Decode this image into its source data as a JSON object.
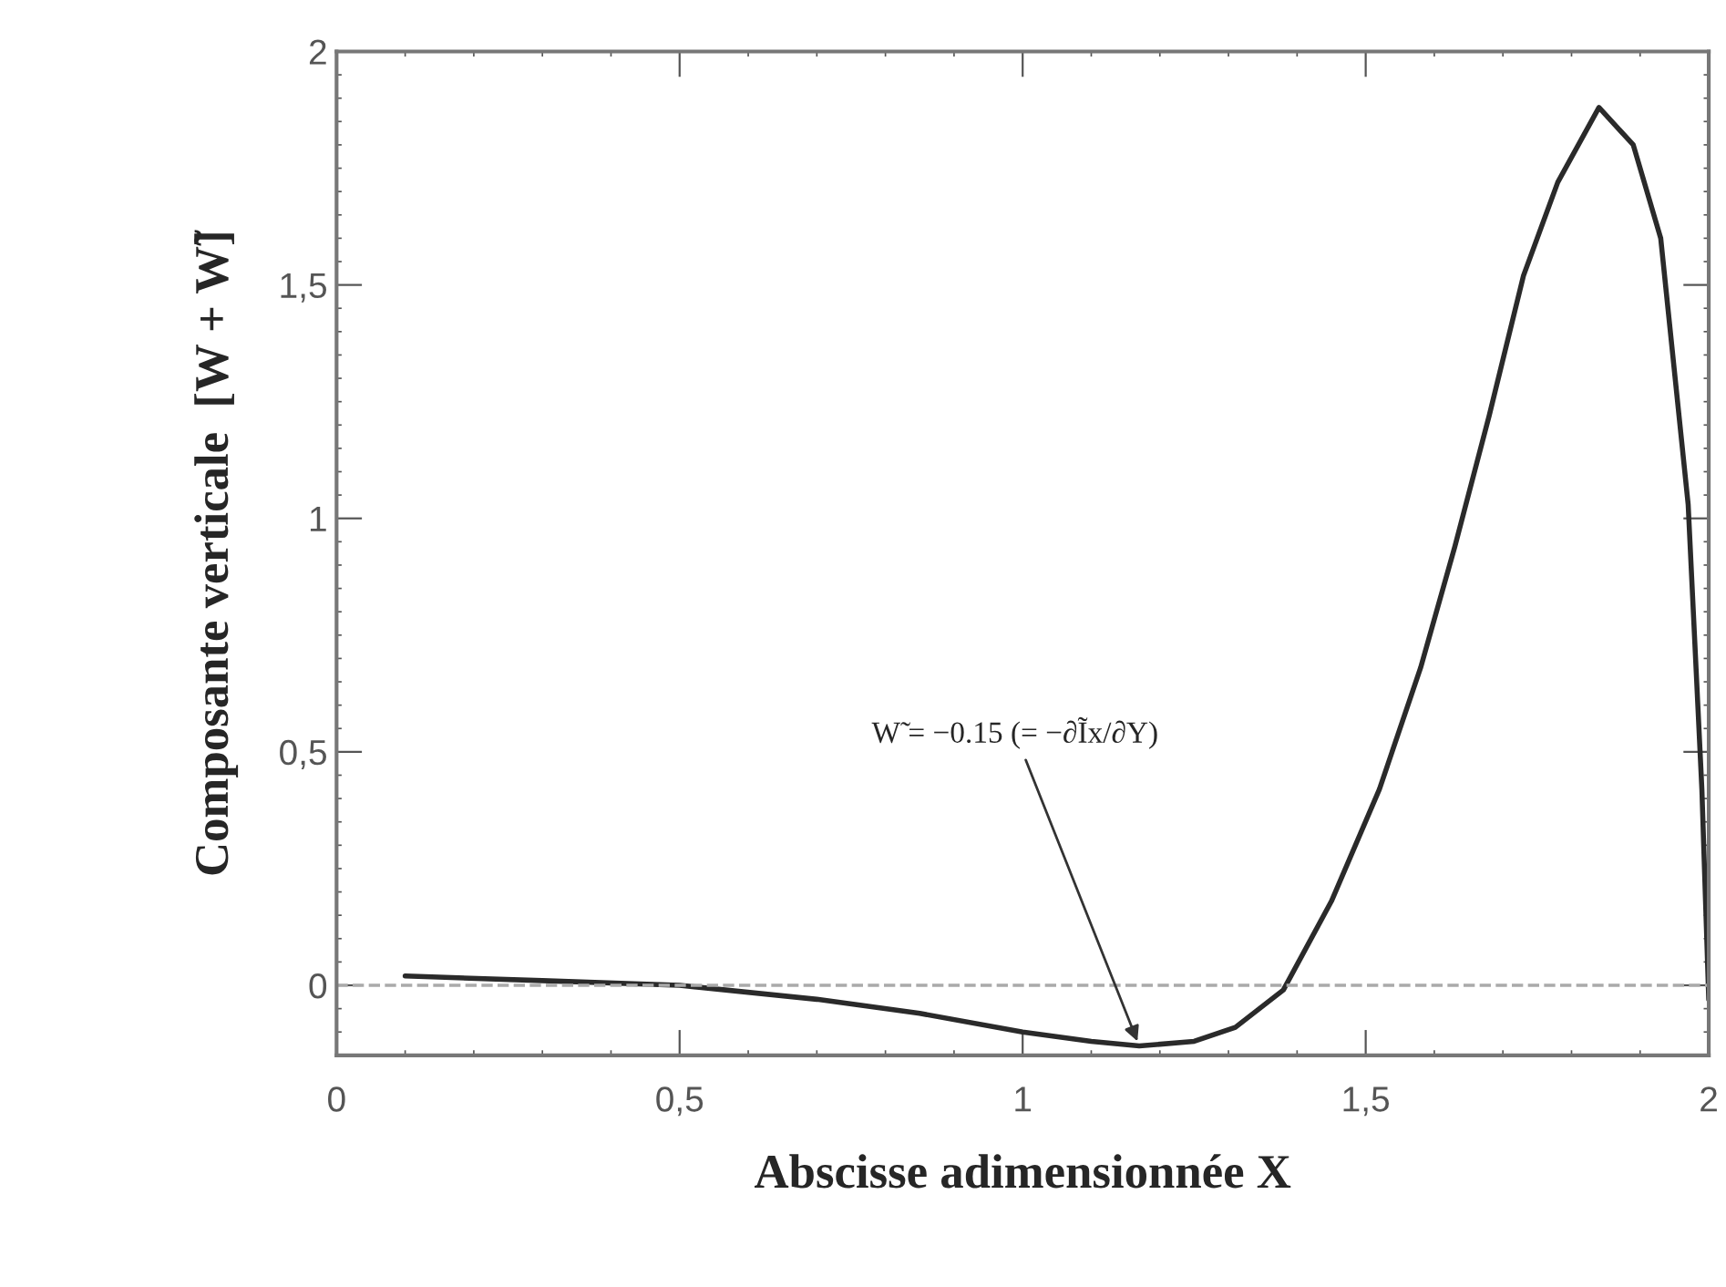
{
  "chart_data": {
    "type": "line",
    "xlabel": "Abscisse adimensionnée X",
    "ylabel": "Composante verticale  [W + W̃]",
    "x": [
      0.1,
      0.3,
      0.5,
      0.7,
      0.85,
      1.0,
      1.1,
      1.17,
      1.25,
      1.31,
      1.38,
      1.45,
      1.52,
      1.58,
      1.63,
      1.68,
      1.73,
      1.78,
      1.84,
      1.89,
      1.93,
      1.97,
      1.99,
      2.0
    ],
    "series": [
      {
        "color": "#2a2a2a",
        "values": [
          0.02,
          0.01,
          0.0,
          -0.03,
          -0.06,
          -0.1,
          -0.12,
          -0.13,
          -0.12,
          -0.09,
          -0.01,
          0.18,
          0.42,
          0.68,
          0.94,
          1.22,
          1.52,
          1.72,
          1.88,
          1.8,
          1.6,
          1.03,
          0.42,
          -0.03
        ]
      }
    ],
    "xlim": [
      0,
      2
    ],
    "ylim": [
      -0.15,
      2
    ],
    "xticks": [
      0,
      {
        "value": 0.5,
        "label": "0,5"
      },
      1,
      {
        "value": 1.5,
        "label": "1,5"
      },
      2
    ],
    "yticks": [
      0,
      {
        "value": 0.5,
        "label": "0,5"
      },
      1,
      {
        "value": 1.5,
        "label": "1,5"
      },
      2
    ],
    "ref_lines": [
      {
        "axis": "y",
        "value": 0,
        "line_style": "dashed",
        "color": "#aaaaaa"
      }
    ],
    "annotations": [
      {
        "text": "W̃ = −0.15 (= −∂Ĩx/∂Y)",
        "x": 1.17,
        "y": -0.13
      }
    ],
    "grid": false,
    "legend": false,
    "marker": "none",
    "line_style": "solid"
  }
}
